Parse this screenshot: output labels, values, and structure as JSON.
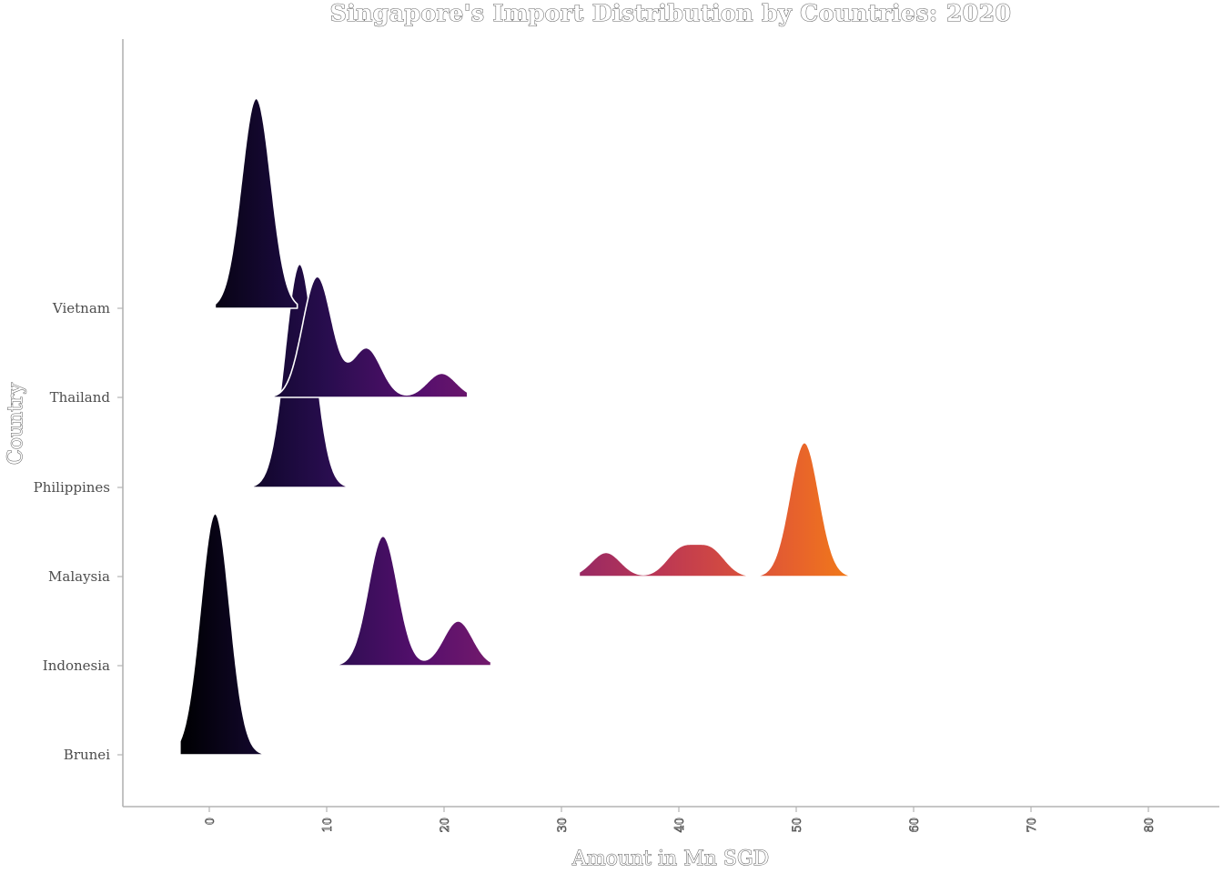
{
  "chart_data": {
    "type": "ridgeline",
    "title": "Singapore's Import Distribution by Countries: 2020",
    "xlabel": "Amount in Mn SGD",
    "ylabel": "Country",
    "xlim": [
      -7,
      86
    ],
    "xticks": [
      0,
      10,
      20,
      30,
      40,
      50,
      60,
      70,
      80
    ],
    "categories": [
      "Brunei",
      "Indonesia",
      "Malaysia",
      "Philippines",
      "Thailand",
      "Vietnam"
    ],
    "color_scale": "inferno (by x value, 0 dark → 55 orange)",
    "series": [
      {
        "name": "Brunei",
        "range": [
          -2.5,
          5
        ],
        "peaks": [
          {
            "center": 0.5,
            "height": 2.7
          }
        ]
      },
      {
        "name": "Indonesia",
        "range": [
          10,
          24
        ],
        "peaks": [
          {
            "center": 14.8,
            "height": 1.45
          },
          {
            "center": 21.2,
            "height": 0.5
          }
        ]
      },
      {
        "name": "Malaysia",
        "range": [
          31.5,
          55
        ],
        "peaks": [
          {
            "center": 33.8,
            "height": 0.27
          },
          {
            "center": 40.2,
            "height": 0.3
          },
          {
            "center": 42.7,
            "height": 0.3
          },
          {
            "center": 50.7,
            "height": 1.5
          }
        ]
      },
      {
        "name": "Philippines",
        "range": [
          3.5,
          12
        ],
        "peaks": [
          {
            "center": 7.7,
            "height": 2.5
          }
        ]
      },
      {
        "name": "Thailand",
        "range": [
          5,
          22
        ],
        "peaks": [
          {
            "center": 9.2,
            "height": 1.35
          },
          {
            "center": 13.4,
            "height": 0.55
          },
          {
            "center": 19.8,
            "height": 0.27
          }
        ]
      },
      {
        "name": "Vietnam",
        "range": [
          0.5,
          7.5
        ],
        "peaks": [
          {
            "center": 4.0,
            "height": 2.35
          }
        ]
      }
    ]
  }
}
